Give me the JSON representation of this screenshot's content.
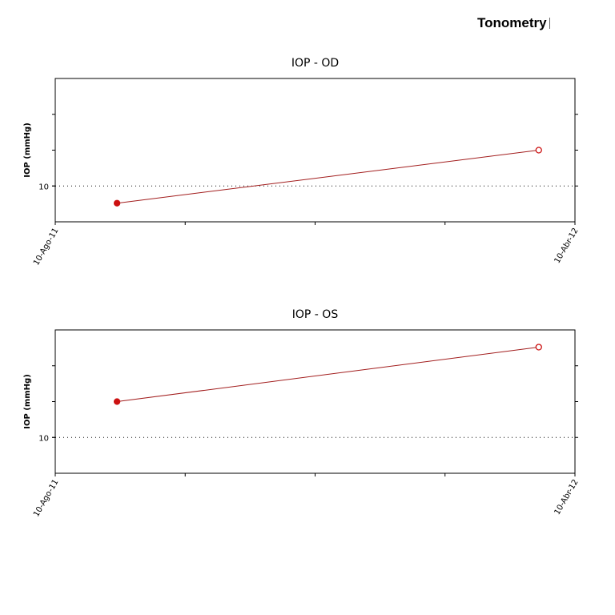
{
  "header": {
    "title": "Tonometry"
  },
  "colors": {
    "line": "#a21d1d",
    "marker": "#cc1111",
    "frame": "#000000",
    "grid": "#000000"
  },
  "chart_data": [
    {
      "type": "line",
      "title": "IOP - OD",
      "ylabel": "IOP (mmHg)",
      "ytick_labels": [
        "10"
      ],
      "yticks": [
        10
      ],
      "ylim": [
        7.5,
        17.5
      ],
      "xtick_labels": [
        "10-Ago-11",
        "10-Abr-12"
      ],
      "xlim": [
        "2011-08-10",
        "2012-04-10"
      ],
      "grid": "dotted-horizontal-at-labelled-ticks",
      "series": [
        {
          "x": [
            "2011-09-08",
            "2012-03-24"
          ],
          "y": [
            8.8,
            12.5
          ],
          "markers": [
            "filled",
            "hollow"
          ]
        }
      ]
    },
    {
      "type": "line",
      "title": "IOP - OS",
      "ylabel": "IOP (mmHg)",
      "ytick_labels": [
        "10"
      ],
      "yticks": [
        10
      ],
      "ylim": [
        7.5,
        17.5
      ],
      "xtick_labels": [
        "10-Ago-11",
        "10-Abr-12"
      ],
      "xlim": [
        "2011-08-10",
        "2012-04-10"
      ],
      "grid": "dotted-horizontal-at-labelled-ticks",
      "series": [
        {
          "x": [
            "2011-09-08",
            "2012-03-24"
          ],
          "y": [
            12.5,
            16.3
          ],
          "markers": [
            "filled",
            "hollow"
          ]
        }
      ]
    }
  ]
}
